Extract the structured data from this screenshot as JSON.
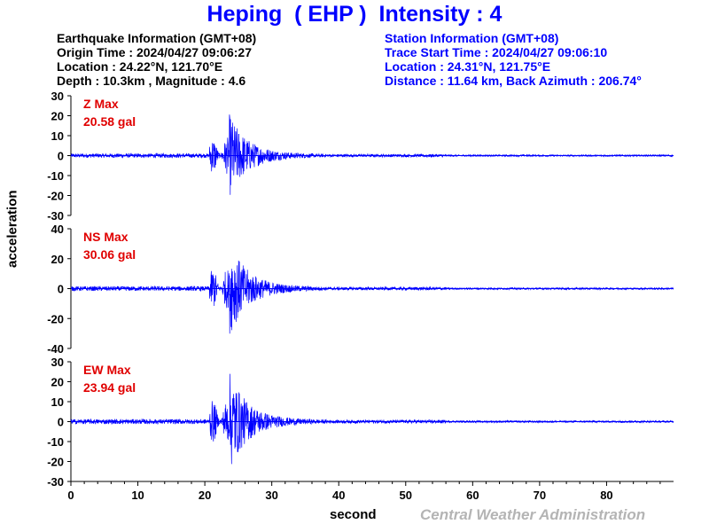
{
  "title": "Heping  ( EHP )  Intensity : 4",
  "earthquake": {
    "header": "Earthquake Information  (GMT+08)",
    "origin": "Origin Time : 2024/04/27 09:06:27",
    "location": "Location : 24.22°N, 121.70°E",
    "depth": "Depth : 10.3km , Magnitude : 4.6"
  },
  "station": {
    "header": "Station Information  (GMT+08)",
    "trace_start": "Trace Start Time : 2024/04/27 09:06:10",
    "location": "Location : 24.31°N, 121.75°E",
    "distance": "Distance : 11.64 km, Back Azimuth : 206.74°"
  },
  "y_axis_label": "acceleration",
  "x_axis_label": "second",
  "credit": "Central Weather Administration",
  "colors": {
    "trace": "#0000ff",
    "label": "#e00000",
    "title": "#0000ff"
  },
  "chart_data": [
    {
      "type": "line",
      "component": "Z",
      "max_label": "Z Max",
      "max_value_label": "20.58 gal",
      "peak": 20.58,
      "p_arrival_s": 20.7,
      "s_arrival_s": 23.6,
      "xlim": [
        0,
        90
      ],
      "ylim": [
        -30,
        30
      ],
      "yticks": [
        "30",
        "20",
        "10",
        "0",
        "-10",
        "-20",
        "-30"
      ]
    },
    {
      "type": "line",
      "component": "NS",
      "max_label": "NS Max",
      "max_value_label": "30.06 gal",
      "peak": 30.06,
      "p_arrival_s": 20.7,
      "s_arrival_s": 23.7,
      "xlim": [
        0,
        90
      ],
      "ylim": [
        -40,
        40
      ],
      "yticks": [
        "40",
        "20",
        "0",
        "-20",
        "-40"
      ]
    },
    {
      "type": "line",
      "component": "EW",
      "max_label": "EW Max",
      "max_value_label": "23.94 gal",
      "peak": 23.94,
      "p_arrival_s": 20.7,
      "s_arrival_s": 23.7,
      "xlim": [
        0,
        90
      ],
      "ylim": [
        -30,
        30
      ],
      "yticks": [
        "30",
        "20",
        "10",
        "0",
        "-10",
        "-20",
        "-30"
      ]
    }
  ],
  "x_ticks": [
    "0",
    "10",
    "20",
    "30",
    "40",
    "50",
    "60",
    "70",
    "80"
  ]
}
